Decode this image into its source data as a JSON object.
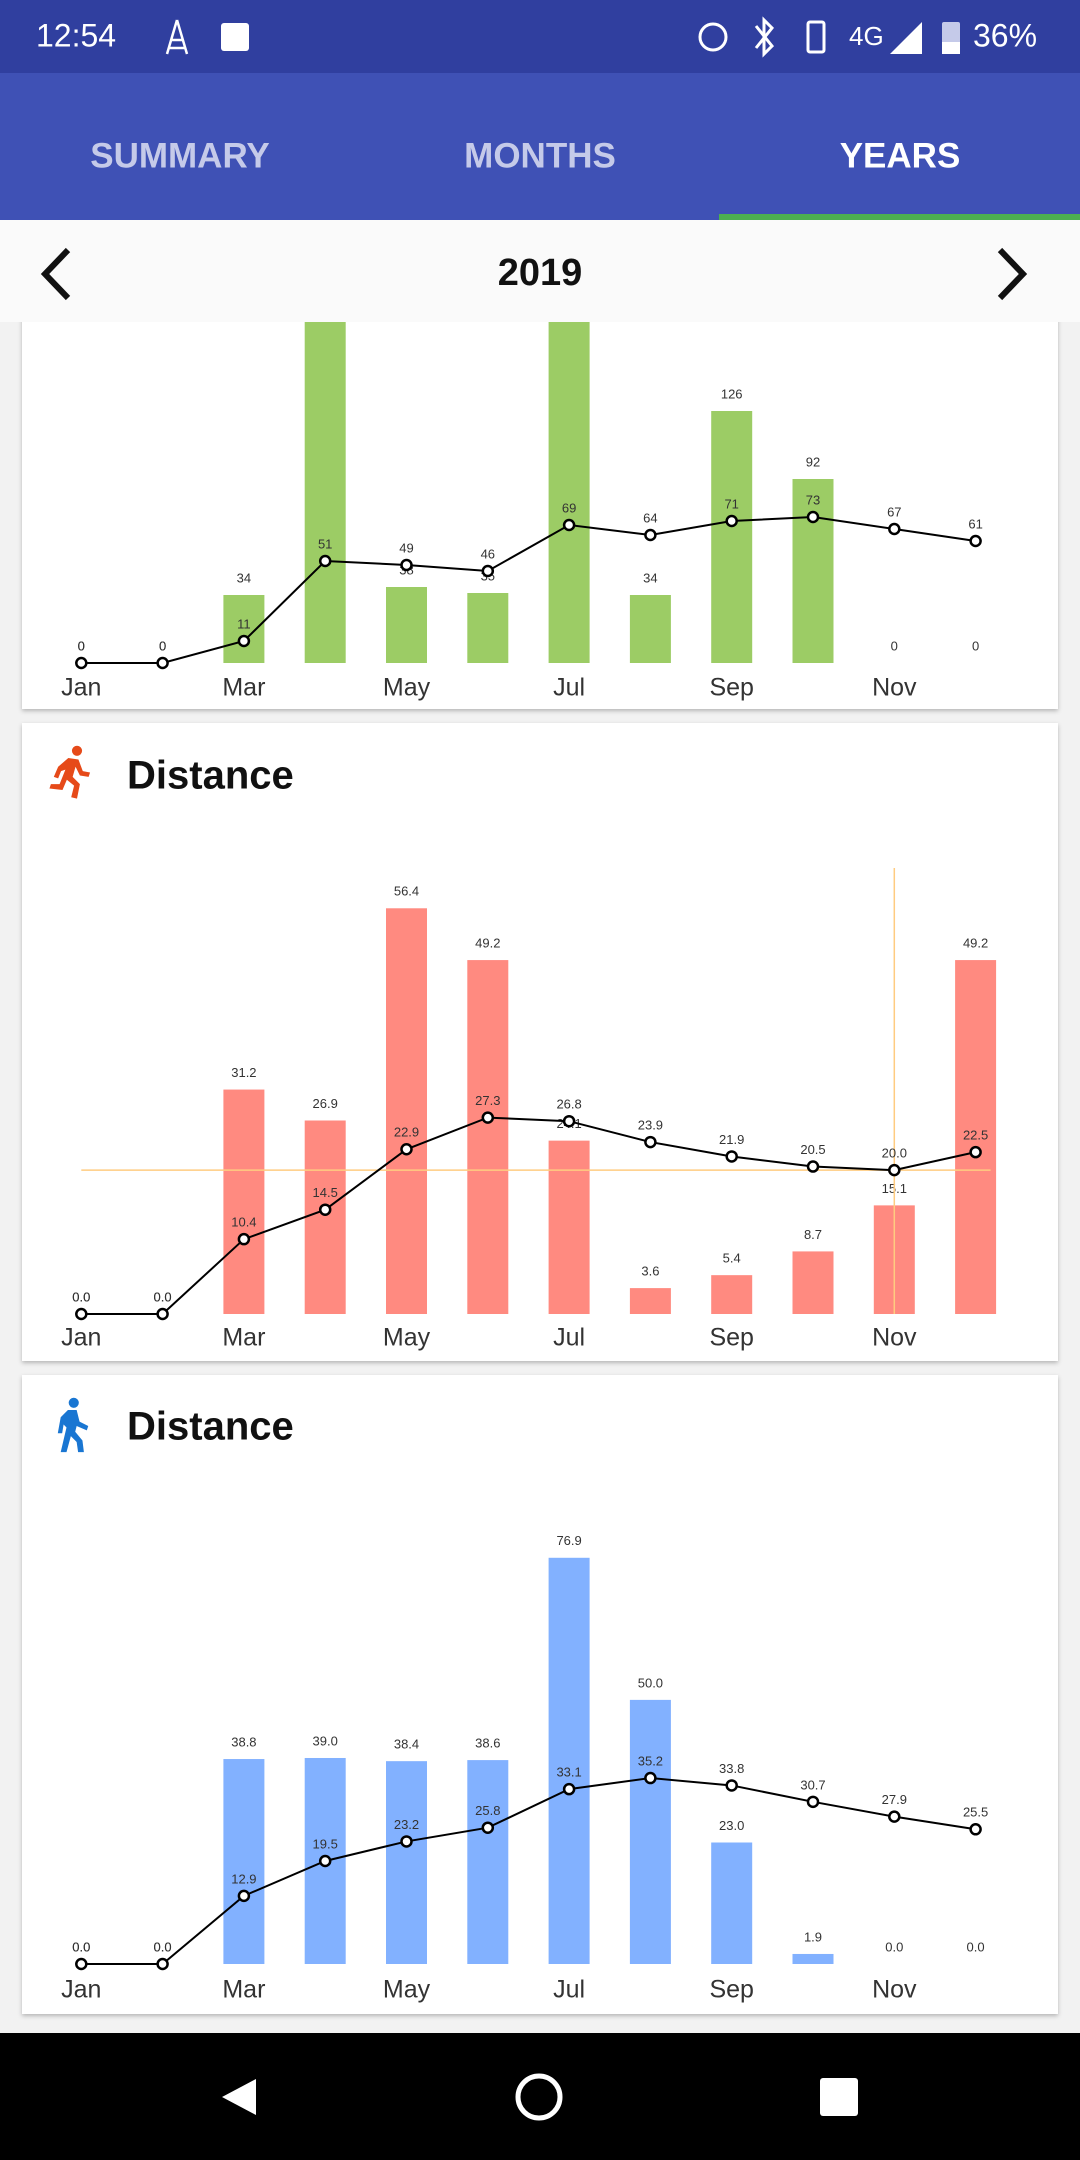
{
  "status_bar": {
    "time": "12:54",
    "network": "4G",
    "battery": "36%"
  },
  "tabs": [
    "SUMMARY",
    "MONTHS",
    "YEARS"
  ],
  "selected_tab": "YEARS",
  "year_nav": {
    "year": "2019"
  },
  "chart_data": [
    {
      "type": "bar",
      "categories": [
        "Jan",
        null,
        "Mar",
        null,
        "May",
        null,
        "Jul",
        null,
        "Sep",
        null,
        "Nov",
        null
      ],
      "ylim": [
        0,
        200
      ],
      "series": [
        {
          "type": "bar",
          "color": "#9ccc65",
          "values": [
            0,
            0,
            34,
            190,
            38,
            35,
            190,
            34,
            126,
            92,
            0,
            0
          ]
        },
        {
          "type": "line",
          "color": "#000000",
          "values": [
            0,
            0,
            11,
            51,
            49,
            46,
            69,
            64,
            71,
            73,
            67,
            61
          ]
        }
      ]
    },
    {
      "type": "bar",
      "title": "Distance",
      "categories": [
        "Jan",
        null,
        "Mar",
        null,
        "May",
        null,
        "Jul",
        null,
        "Sep",
        null,
        "Nov",
        null
      ],
      "ylim": [
        0,
        62
      ],
      "highlight": "Nov",
      "highlight_color": "#ffcc80",
      "series": [
        {
          "type": "bar",
          "color": "#ff8a80",
          "values": [
            0,
            0,
            31.2,
            26.9,
            56.4,
            49.2,
            24.1,
            3.6,
            5.4,
            8.7,
            15.1,
            49.2
          ],
          "value_labels": [
            "0.0",
            "0.0",
            "31.2",
            "26.9",
            "56.4",
            "49.2",
            "24.1",
            "3.6",
            "5.4",
            "8.7",
            "15.1",
            "49.2"
          ]
        },
        {
          "type": "line",
          "color": "#000000",
          "values": [
            0,
            0,
            10.4,
            14.5,
            22.9,
            27.3,
            26.8,
            23.9,
            21.9,
            20.5,
            20.0,
            22.5
          ],
          "value_labels": [
            "0.0",
            "0.0",
            "10.4",
            "14.5",
            "22.9",
            "27.3",
            "26.8",
            "23.9",
            "21.9",
            "20.5",
            "20.0",
            "22.5"
          ]
        }
      ]
    },
    {
      "type": "bar",
      "title": "Distance",
      "categories": [
        "Jan",
        null,
        "Mar",
        null,
        "May",
        null,
        "Jul",
        null,
        "Sep",
        null,
        "Nov",
        null
      ],
      "ylim": [
        0,
        85
      ],
      "series": [
        {
          "type": "bar",
          "color": "#82b1ff",
          "values": [
            0,
            0,
            38.8,
            39.0,
            38.4,
            38.6,
            76.9,
            50.0,
            23.0,
            1.9,
            0,
            0
          ],
          "value_labels": [
            "0.0",
            "0.0",
            "38.8",
            "39.0",
            "38.4",
            "38.6",
            "76.9",
            "50.0",
            "23.0",
            "1.9",
            "0.0",
            "0.0"
          ]
        },
        {
          "type": "line",
          "color": "#000000",
          "values": [
            0,
            0,
            12.9,
            19.5,
            23.2,
            25.8,
            33.1,
            35.2,
            33.8,
            30.7,
            27.9,
            25.5
          ],
          "value_labels": [
            "0.0",
            "0.0",
            "12.9",
            "19.5",
            "23.2",
            "25.8",
            "33.1",
            "35.2",
            "33.8",
            "30.7",
            "27.9",
            "25.5"
          ]
        }
      ]
    }
  ]
}
